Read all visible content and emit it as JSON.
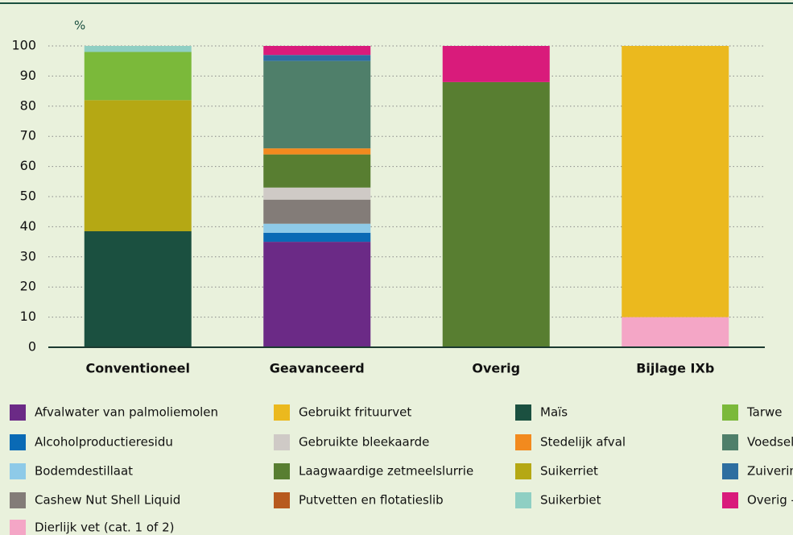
{
  "chart_data": {
    "type": "stacked_bar",
    "y_label": "%",
    "categories": [
      "Conventioneel",
      "Geavanceerd",
      "Overig",
      "Bijlage IXb"
    ],
    "ylim": [
      0,
      100
    ],
    "yticks": [
      0,
      10,
      20,
      30,
      40,
      50,
      60,
      70,
      80,
      90,
      100
    ],
    "grid": true,
    "series": [
      {
        "name": "Afvalwater van palmoliemolen",
        "color": "#6b2a86",
        "values": [
          0,
          35,
          0,
          0
        ]
      },
      {
        "name": "Alcoholproductieresidu",
        "color": "#0a6ab5",
        "values": [
          0,
          3,
          0,
          0
        ]
      },
      {
        "name": "Bodemdestillaat",
        "color": "#8ecae8",
        "values": [
          0,
          3,
          0,
          0
        ]
      },
      {
        "name": "Cashew Nut Shell Liquid",
        "color": "#837c78",
        "values": [
          0,
          8,
          0,
          0
        ]
      },
      {
        "name": "Dierlijk vet (cat. 1 of 2)",
        "color": "#f4a6c6",
        "values": [
          0,
          0,
          0,
          10
        ]
      },
      {
        "name": "Gebruikt frituurvet",
        "color": "#ebb91e",
        "values": [
          0,
          0,
          0,
          90
        ]
      },
      {
        "name": "Gebruikte bleekaarde",
        "color": "#cfcac6",
        "values": [
          0,
          4,
          0,
          0
        ]
      },
      {
        "name": "Laagwaardige zetmeelslurrie",
        "color": "#587e31",
        "values": [
          0,
          11,
          88,
          0
        ]
      },
      {
        "name": "Putvetten en flotatieslib",
        "color": "#b75a1e",
        "values": [
          0,
          0,
          0,
          0
        ]
      },
      {
        "name": "Maïs",
        "color": "#1b5040",
        "values": [
          38.5,
          0,
          0,
          0
        ]
      },
      {
        "name": "Stedelijk afval",
        "color": "#f28a1e",
        "values": [
          0,
          2,
          0,
          0
        ]
      },
      {
        "name": "Suikerriet",
        "color": "#b5a814",
        "values": [
          43.5,
          0,
          0,
          0
        ]
      },
      {
        "name": "Tarwe",
        "color": "#7bb93a",
        "values": [
          16,
          0,
          0,
          0
        ]
      },
      {
        "name": "Voedselafval",
        "color": "#4f7f6a",
        "values": [
          0,
          29,
          0,
          0
        ]
      },
      {
        "name": "Zuiveringsslib",
        "color": "#2d6ea0",
        "values": [
          0,
          2,
          0,
          0
        ]
      },
      {
        "name": "Suikerbiet",
        "color": "#8fcfc3",
        "values": [
          2,
          0,
          0,
          0
        ]
      },
      {
        "name": "Overig - afval",
        "color": "#d91b7b",
        "values": [
          0,
          3,
          12,
          0
        ]
      }
    ]
  }
}
